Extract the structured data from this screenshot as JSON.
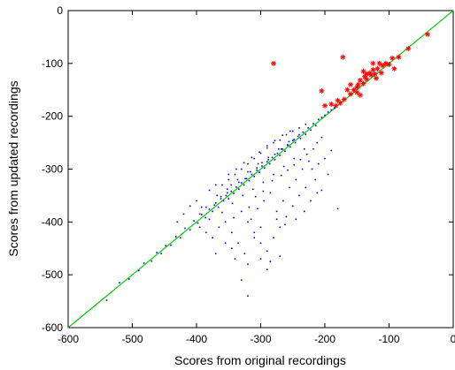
{
  "chart_data": {
    "type": "scatter",
    "xlabel": "Scores from original recordings",
    "ylabel": "Scores from updated recordings",
    "xlim": [
      -600,
      0
    ],
    "ylim": [
      -600,
      0
    ],
    "x_ticks": [
      -600,
      -500,
      -400,
      -300,
      -200,
      -100,
      0
    ],
    "y_ticks": [
      -600,
      -500,
      -400,
      -300,
      -200,
      -100,
      0
    ],
    "grid": false,
    "colors": {
      "diagonal": "#00cc00",
      "points": "#0000ff",
      "highlights": "#ff0000",
      "axis": "#000000"
    },
    "reference_line": {
      "from": [
        -600,
        -600
      ],
      "to": [
        0,
        0
      ]
    },
    "series": [
      {
        "marker": "dot",
        "color": "#0000ff",
        "points": [
          [
            -540,
            -548
          ],
          [
            -520,
            -515
          ],
          [
            -505,
            -508
          ],
          [
            -490,
            -492
          ],
          [
            -482,
            -478
          ],
          [
            -470,
            -474
          ],
          [
            -462,
            -458
          ],
          [
            -455,
            -460
          ],
          [
            -448,
            -445
          ],
          [
            -440,
            -444
          ],
          [
            -432,
            -428
          ],
          [
            -425,
            -430
          ],
          [
            -418,
            -412
          ],
          [
            -410,
            -415
          ],
          [
            -404,
            -398
          ],
          [
            -398,
            -402
          ],
          [
            -392,
            -386
          ],
          [
            -386,
            -392
          ],
          [
            -380,
            -376
          ],
          [
            -375,
            -380
          ],
          [
            -370,
            -364
          ],
          [
            -366,
            -372
          ],
          [
            -362,
            -356
          ],
          [
            -358,
            -360
          ],
          [
            -354,
            -350
          ],
          [
            -350,
            -356
          ],
          [
            -346,
            -342
          ],
          [
            -342,
            -346
          ],
          [
            -338,
            -334
          ],
          [
            -334,
            -338
          ],
          [
            -330,
            -326
          ],
          [
            -326,
            -330
          ],
          [
            -322,
            -318
          ],
          [
            -318,
            -322
          ],
          [
            -314,
            -310
          ],
          [
            -310,
            -314
          ],
          [
            -306,
            -302
          ],
          [
            -302,
            -306
          ],
          [
            -298,
            -294
          ],
          [
            -294,
            -298
          ],
          [
            -290,
            -286
          ],
          [
            -286,
            -290
          ],
          [
            -282,
            -278
          ],
          [
            -278,
            -282
          ],
          [
            -274,
            -270
          ],
          [
            -270,
            -274
          ],
          [
            -266,
            -262
          ],
          [
            -262,
            -266
          ],
          [
            -258,
            -254
          ],
          [
            -254,
            -258
          ],
          [
            -250,
            -246
          ],
          [
            -246,
            -250
          ],
          [
            -242,
            -238
          ],
          [
            -238,
            -242
          ],
          [
            -234,
            -230
          ],
          [
            -230,
            -234
          ],
          [
            -226,
            -222
          ],
          [
            -222,
            -226
          ],
          [
            -218,
            -214
          ],
          [
            -214,
            -218
          ],
          [
            -210,
            -206
          ],
          [
            -205,
            -202
          ],
          [
            -200,
            -198
          ],
          [
            -195,
            -192
          ],
          [
            -190,
            -188
          ],
          [
            -185,
            -184
          ],
          [
            -392,
            -372
          ],
          [
            -380,
            -395
          ],
          [
            -368,
            -350
          ],
          [
            -360,
            -382
          ],
          [
            -352,
            -338
          ],
          [
            -344,
            -365
          ],
          [
            -336,
            -320
          ],
          [
            -328,
            -350
          ],
          [
            -320,
            -305
          ],
          [
            -312,
            -338
          ],
          [
            -304,
            -290
          ],
          [
            -296,
            -325
          ],
          [
            -288,
            -278
          ],
          [
            -280,
            -310
          ],
          [
            -272,
            -262
          ],
          [
            -264,
            -295
          ],
          [
            -256,
            -248
          ],
          [
            -248,
            -280
          ],
          [
            -240,
            -235
          ],
          [
            -232,
            -262
          ],
          [
            -330,
            -380
          ],
          [
            -320,
            -400
          ],
          [
            -310,
            -420
          ],
          [
            -300,
            -440
          ],
          [
            -290,
            -455
          ],
          [
            -280,
            -430
          ],
          [
            -270,
            -410
          ],
          [
            -260,
            -390
          ],
          [
            -250,
            -370
          ],
          [
            -240,
            -350
          ],
          [
            -230,
            -335
          ],
          [
            -345,
            -420
          ],
          [
            -335,
            -440
          ],
          [
            -325,
            -460
          ],
          [
            -315,
            -395
          ],
          [
            -305,
            -375
          ],
          [
            -295,
            -360
          ],
          [
            -285,
            -345
          ],
          [
            -275,
            -380
          ],
          [
            -265,
            -360
          ],
          [
            -255,
            -335
          ],
          [
            -245,
            -320
          ],
          [
            -235,
            -300
          ],
          [
            -225,
            -285
          ],
          [
            -340,
            -470
          ],
          [
            -300,
            -470
          ],
          [
            -285,
            -475
          ],
          [
            -270,
            -465
          ],
          [
            -355,
            -400
          ],
          [
            -342,
            -392
          ],
          [
            -318,
            -372
          ],
          [
            -308,
            -352
          ],
          [
            -296,
            -342
          ],
          [
            -282,
            -322
          ],
          [
            -268,
            -312
          ],
          [
            -258,
            -302
          ],
          [
            -248,
            -292
          ],
          [
            -238,
            -282
          ],
          [
            -228,
            -272
          ],
          [
            -218,
            -262
          ],
          [
            -212,
            -250
          ],
          [
            -205,
            -240
          ],
          [
            -360,
            -330
          ],
          [
            -350,
            -320
          ],
          [
            -340,
            -310
          ],
          [
            -330,
            -300
          ],
          [
            -320,
            -290
          ],
          [
            -310,
            -280
          ],
          [
            -300,
            -270
          ],
          [
            -290,
            -260
          ],
          [
            -280,
            -250
          ],
          [
            -270,
            -245
          ],
          [
            -260,
            -235
          ],
          [
            -250,
            -228
          ],
          [
            -240,
            -222
          ],
          [
            -230,
            -215
          ],
          [
            -380,
            -340
          ],
          [
            -370,
            -330
          ],
          [
            -400,
            -360
          ],
          [
            -410,
            -370
          ],
          [
            -420,
            -385
          ],
          [
            -430,
            -400
          ],
          [
            -395,
            -410
          ],
          [
            -385,
            -420
          ],
          [
            -375,
            -430
          ],
          [
            -365,
            -410
          ],
          [
            -355,
            -440
          ],
          [
            -345,
            -450
          ],
          [
            -320,
            -480
          ],
          [
            -290,
            -490
          ],
          [
            -330,
            -510
          ],
          [
            -320,
            -540
          ],
          [
            -370,
            -460
          ],
          [
            -180,
            -375
          ],
          [
            -220,
            -300
          ],
          [
            -210,
            -290
          ],
          [
            -200,
            -280
          ],
          [
            -190,
            -265
          ],
          [
            -215,
            -320
          ],
          [
            -205,
            -340
          ],
          [
            -195,
            -310
          ],
          [
            -300,
            -410
          ],
          [
            -310,
            -430
          ],
          [
            -275,
            -395
          ],
          [
            -262,
            -405
          ],
          [
            -245,
            -395
          ],
          [
            -232,
            -380
          ],
          [
            -222,
            -360
          ],
          [
            -212,
            -345
          ],
          [
            -350,
            -310
          ],
          [
            -338,
            -300
          ],
          [
            -326,
            -288
          ],
          [
            -314,
            -278
          ],
          [
            -302,
            -268
          ],
          [
            -290,
            -256
          ],
          [
            -278,
            -246
          ],
          [
            -266,
            -236
          ],
          [
            -254,
            -228
          ],
          [
            -395,
            -385
          ],
          [
            -385,
            -372
          ],
          [
            -372,
            -368
          ],
          [
            -362,
            -352
          ],
          [
            -352,
            -345
          ],
          [
            -346,
            -330
          ],
          [
            -334,
            -325
          ],
          [
            -324,
            -318
          ],
          [
            -316,
            -305
          ],
          [
            -306,
            -298
          ],
          [
            -298,
            -288
          ],
          [
            -288,
            -282
          ],
          [
            -278,
            -272
          ],
          [
            -268,
            -262
          ],
          [
            -258,
            -255
          ],
          [
            -248,
            -244
          ]
        ]
      },
      {
        "marker": "asterisk",
        "color": "#ff0000",
        "points": [
          [
            -280,
            -100
          ],
          [
            -172,
            -88
          ],
          [
            -205,
            -152
          ],
          [
            -190,
            -177
          ],
          [
            -200,
            -180
          ],
          [
            -183,
            -180
          ],
          [
            -180,
            -170
          ],
          [
            -176,
            -175
          ],
          [
            -170,
            -168
          ],
          [
            -160,
            -158
          ],
          [
            -155,
            -150
          ],
          [
            -150,
            -145
          ],
          [
            -148,
            -140
          ],
          [
            -145,
            -132
          ],
          [
            -140,
            -138
          ],
          [
            -138,
            -125
          ],
          [
            -135,
            -130
          ],
          [
            -130,
            -118
          ],
          [
            -128,
            -122
          ],
          [
            -125,
            -112
          ],
          [
            -122,
            -120
          ],
          [
            -118,
            -110
          ],
          [
            -115,
            -100
          ],
          [
            -110,
            -104
          ],
          [
            -105,
            -100
          ],
          [
            -100,
            -102
          ],
          [
            -95,
            -90
          ],
          [
            -92,
            -110
          ],
          [
            -85,
            -88
          ],
          [
            -70,
            -72
          ],
          [
            -40,
            -45
          ],
          [
            -160,
            -140
          ],
          [
            -150,
            -155
          ],
          [
            -140,
            -115
          ],
          [
            -120,
            -128
          ],
          [
            -135,
            -120
          ],
          [
            -165,
            -150
          ],
          [
            -145,
            -160
          ],
          [
            -125,
            -100
          ],
          [
            -112,
            -118
          ]
        ]
      }
    ]
  }
}
